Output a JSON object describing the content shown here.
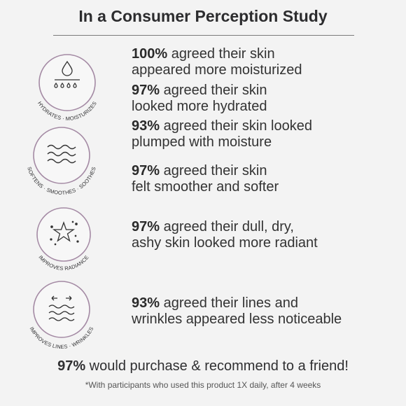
{
  "title": "In a Consumer Perception Study",
  "badges": [
    {
      "label": "HYDRATES · MOISTURIZES",
      "icon": "droplet-drops-icon"
    },
    {
      "label": "SOFTENS · SMOOTHES · SOOTHES",
      "icon": "waves-icon"
    },
    {
      "label": "IMPROVES RADIANCE",
      "icon": "sparkle-star-icon"
    },
    {
      "label": "IMPROVES LINES · WRINKLES",
      "icon": "lines-arrows-icon"
    }
  ],
  "stats": [
    {
      "percent": "100%",
      "line1": " agreed their skin",
      "line2": "appeared more moisturized"
    },
    {
      "percent": "97%",
      "line1": " agreed their skin",
      "line2": "looked more hydrated"
    },
    {
      "percent": "93%",
      "line1": " agreed their skin looked",
      "line2": "plumped with moisture"
    },
    {
      "percent": "97%",
      "line1": " agreed their skin",
      "line2": "felt smoother and softer"
    },
    {
      "percent": "97%",
      "line1": " agreed their dull, dry,",
      "line2": "ashy skin looked more radiant"
    },
    {
      "percent": "93%",
      "line1": " agreed their lines and",
      "line2": "wrinkles appeared less noticeable"
    }
  ],
  "footer": {
    "percent": "97%",
    "text": " would purchase & recommend to a friend!"
  },
  "note": "*With participants who used this product 1X daily, after 4 weeks",
  "colors": {
    "ring": "#a48aa4",
    "text": "#2f2f31",
    "background": "#f3f3f3"
  }
}
